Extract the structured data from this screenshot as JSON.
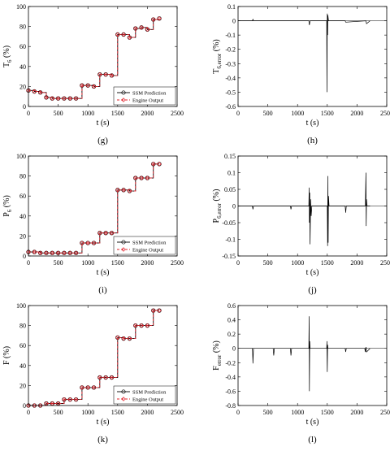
{
  "chart_data": [
    {
      "panel": "(g)",
      "type": "line",
      "xlabel": "t (s)",
      "ylabel_main": "T",
      "ylabel_sub": "6",
      "ylabel_unit": "(%)",
      "xlim": [
        0,
        2500
      ],
      "ylim": [
        0,
        100
      ],
      "xticks": [
        "0",
        "500",
        "1000",
        "1500",
        "2000",
        "2500"
      ],
      "yticks": [
        "0",
        "20",
        "40",
        "60",
        "80",
        "100"
      ],
      "legend": [
        "SSM Prediction",
        "Engine Output"
      ],
      "legend_position": "bottom-right",
      "series": [
        {
          "name": "SSM Prediction",
          "style": "black-solid-circle",
          "x": [
            0,
            100,
            200,
            300,
            400,
            500,
            600,
            700,
            800,
            900,
            1000,
            1100,
            1200,
            1300,
            1400,
            1500,
            1600,
            1700,
            1800,
            1900,
            2000,
            2100,
            2200
          ],
          "y": [
            16,
            15,
            14,
            9,
            8,
            8,
            8,
            8,
            8,
            21,
            21,
            20,
            32,
            32,
            31,
            72,
            72,
            69,
            78,
            79,
            77,
            87,
            88
          ]
        },
        {
          "name": "Engine Output",
          "style": "red-dashed-diamond",
          "x": [
            0,
            100,
            200,
            300,
            400,
            500,
            600,
            700,
            800,
            900,
            1000,
            1100,
            1200,
            1300,
            1400,
            1500,
            1600,
            1700,
            1800,
            1900,
            2000,
            2100,
            2200
          ],
          "y": [
            16,
            15,
            14,
            9,
            8,
            8,
            8,
            8,
            8,
            21,
            21,
            20,
            32,
            32,
            31,
            72,
            72,
            69,
            78,
            79,
            77,
            87,
            88
          ]
        }
      ]
    },
    {
      "panel": "(h)",
      "type": "line",
      "xlabel": "t (s)",
      "ylabel_main": "T",
      "ylabel_sub": "6,error",
      "ylabel_unit": "(%)",
      "xlim": [
        0,
        2500
      ],
      "ylim": [
        -0.6,
        0.1
      ],
      "xticks": [
        "0",
        "500",
        "1000",
        "1500",
        "2000",
        "2500"
      ],
      "yticks": [
        "-0.6",
        "-0.5",
        "-0.4",
        "-0.3",
        "-0.2",
        "-0.1",
        "0",
        "0.1"
      ],
      "series": [
        {
          "name": "",
          "style": "black-solid",
          "x": [
            0,
            240,
            250,
            260,
            1190,
            1200,
            1210,
            1490,
            1495,
            1500,
            1505,
            1510,
            1520,
            1800,
            1810,
            2150,
            2160,
            2220
          ],
          "y": [
            0,
            0,
            0.01,
            0,
            0,
            -0.03,
            0,
            0,
            -0.5,
            0.05,
            -0.1,
            0.04,
            0,
            0,
            -0.01,
            0,
            -0.02,
            0
          ]
        }
      ]
    },
    {
      "panel": "(i)",
      "type": "line",
      "xlabel": "t (s)",
      "ylabel_main": "P",
      "ylabel_sub": "6",
      "ylabel_unit": "(%)",
      "xlim": [
        0,
        2500
      ],
      "ylim": [
        0,
        100
      ],
      "xticks": [
        "0",
        "500",
        "1000",
        "1500",
        "2000",
        "2500"
      ],
      "yticks": [
        "0",
        "20",
        "40",
        "60",
        "80",
        "100"
      ],
      "legend": [
        "SSM Prediction",
        "Engine Output"
      ],
      "legend_position": "bottom-right",
      "series": [
        {
          "name": "SSM Prediction",
          "style": "black-solid-circle",
          "x": [
            0,
            100,
            200,
            300,
            400,
            500,
            600,
            700,
            800,
            900,
            1000,
            1100,
            1200,
            1300,
            1400,
            1500,
            1600,
            1700,
            1800,
            1900,
            2000,
            2100,
            2200
          ],
          "y": [
            4,
            4,
            3,
            3,
            3,
            3,
            3,
            3,
            3,
            13,
            13,
            13,
            23,
            23,
            23,
            66,
            66,
            65,
            78,
            78,
            78,
            92,
            92
          ]
        },
        {
          "name": "Engine Output",
          "style": "red-dashed-diamond",
          "x": [
            0,
            100,
            200,
            300,
            400,
            500,
            600,
            700,
            800,
            900,
            1000,
            1100,
            1200,
            1300,
            1400,
            1500,
            1600,
            1700,
            1800,
            1900,
            2000,
            2100,
            2200
          ],
          "y": [
            4,
            4,
            3,
            3,
            3,
            3,
            3,
            3,
            3,
            13,
            13,
            13,
            23,
            23,
            23,
            66,
            66,
            65,
            78,
            78,
            78,
            92,
            92
          ]
        }
      ]
    },
    {
      "panel": "(j)",
      "type": "line",
      "xlabel": "t (s)",
      "ylabel_main": "P",
      "ylabel_sub": "6,error",
      "ylabel_unit": "(%)",
      "xlim": [
        0,
        2500
      ],
      "ylim": [
        -0.15,
        0.15
      ],
      "xticks": [
        "0",
        "500",
        "1000",
        "1500",
        "2000",
        "2500"
      ],
      "yticks": [
        "-0.15",
        "-0.1",
        "-0.05",
        "0",
        "0.05",
        "0.1",
        "0.15"
      ],
      "series": [
        {
          "name": "",
          "style": "black-solid",
          "x": [
            0,
            240,
            250,
            260,
            880,
            890,
            900,
            1190,
            1195,
            1200,
            1205,
            1210,
            1220,
            1230,
            1240,
            1500,
            1505,
            1510,
            1515,
            1520,
            1530,
            1800,
            1810,
            1820,
            2140,
            2150,
            2155,
            2160,
            2170,
            2220
          ],
          "y": [
            0,
            0,
            -0.01,
            0,
            0,
            -0.01,
            0,
            0,
            0.055,
            -0.05,
            0.04,
            -0.115,
            0.02,
            -0.03,
            0,
            0,
            -0.12,
            0.09,
            -0.11,
            0.03,
            0,
            0,
            -0.02,
            0,
            0,
            0.1,
            -0.06,
            0.02,
            0,
            0
          ]
        }
      ]
    },
    {
      "panel": "(k)",
      "type": "line",
      "xlabel": "t (s)",
      "ylabel_main": "F",
      "ylabel_sub": "",
      "ylabel_unit": "(%)",
      "xlim": [
        0,
        2500
      ],
      "ylim": [
        0,
        100
      ],
      "xticks": [
        "0",
        "500",
        "1000",
        "1500",
        "2000",
        "2500"
      ],
      "yticks": [
        "0",
        "20",
        "40",
        "60",
        "80",
        "100"
      ],
      "legend": [
        "SSM Prediction",
        "Engine Output"
      ],
      "legend_position": "bottom-right",
      "series": [
        {
          "name": "SSM Prediction",
          "style": "black-solid-circle",
          "x": [
            0,
            100,
            200,
            300,
            400,
            500,
            600,
            700,
            800,
            900,
            1000,
            1100,
            1200,
            1300,
            1400,
            1500,
            1600,
            1700,
            1800,
            1900,
            2000,
            2100,
            2200
          ],
          "y": [
            0,
            0,
            0,
            2,
            2,
            2,
            6,
            6,
            6,
            18,
            18,
            18,
            28,
            28,
            28,
            68,
            67,
            67,
            80,
            80,
            80,
            95,
            95
          ]
        },
        {
          "name": "Engine Output",
          "style": "red-dashed-diamond",
          "x": [
            0,
            100,
            200,
            300,
            400,
            500,
            600,
            700,
            800,
            900,
            1000,
            1100,
            1200,
            1300,
            1400,
            1500,
            1600,
            1700,
            1800,
            1900,
            2000,
            2100,
            2200
          ],
          "y": [
            0,
            0,
            0,
            2,
            2,
            2,
            6,
            6,
            6,
            18,
            18,
            18,
            28,
            28,
            28,
            68,
            67,
            67,
            80,
            80,
            80,
            95,
            95
          ]
        }
      ]
    },
    {
      "panel": "(l)",
      "type": "line",
      "xlabel": "t (s)",
      "ylabel_main": "F",
      "ylabel_sub": "error",
      "ylabel_unit": "(%)",
      "xlim": [
        0,
        2500
      ],
      "ylim": [
        -0.8,
        0.6
      ],
      "xticks": [
        "0",
        "500",
        "1000",
        "1500",
        "2000",
        "2500"
      ],
      "yticks": [
        "-0.8",
        "-0.6",
        "-0.4",
        "-0.2",
        "0",
        "0.2",
        "0.4",
        "0.6"
      ],
      "series": [
        {
          "name": "",
          "style": "black-solid",
          "x": [
            0,
            240,
            245,
            250,
            260,
            590,
            600,
            610,
            880,
            890,
            900,
            1190,
            1195,
            1200,
            1205,
            1210,
            1490,
            1495,
            1500,
            1505,
            1510,
            1800,
            1810,
            1820,
            2130,
            2140,
            2150,
            2160,
            2220
          ],
          "y": [
            0,
            0,
            -0.05,
            -0.21,
            0,
            0,
            -0.1,
            0,
            0,
            -0.1,
            0,
            0,
            0.45,
            -0.6,
            0.1,
            0,
            0,
            0.1,
            -0.33,
            0.05,
            0,
            0,
            -0.05,
            0,
            0,
            -0.05,
            0.02,
            -0.05,
            0
          ]
        }
      ]
    }
  ]
}
